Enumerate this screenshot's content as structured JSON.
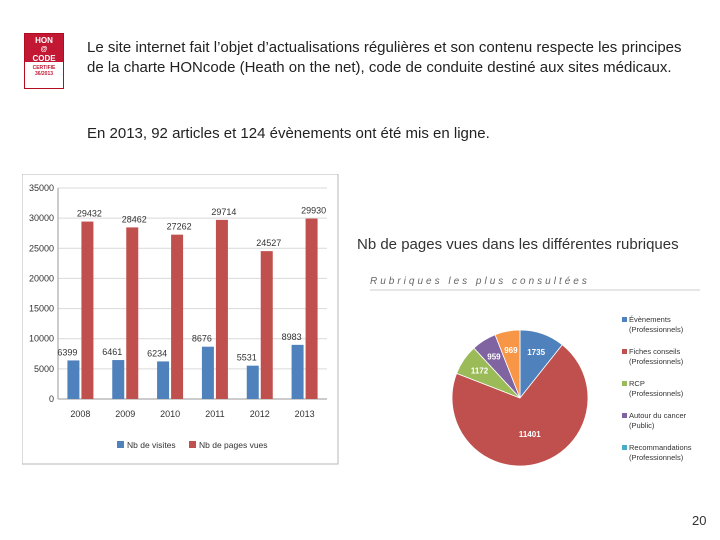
{
  "badge": {
    "line1": "HON",
    "line2": "CODE",
    "line3": "CERTIFIE",
    "line4": "36/2013"
  },
  "text": {
    "intro": "Le site internet fait l’objet d’actualisations régulières et son contenu respecte les principes de la charte HONcode (Heath on the net), code de conduite destiné aux sites médicaux.",
    "stat": "En 2013, 92 articles et 124 évènements ont été mis en ligne.",
    "pie_title": "Nb de pages vues dans les différentes rubriques",
    "page_number": "20"
  },
  "chart_data": [
    {
      "type": "bar",
      "categories": [
        "2008",
        "2009",
        "2010",
        "2011",
        "2012",
        "2013"
      ],
      "series": [
        {
          "name": "Nb de visites",
          "values": [
            6399,
            6461,
            6234,
            8676,
            5531,
            8983
          ],
          "color": "#4f81bd"
        },
        {
          "name": "Nb de pages vues",
          "values": [
            29432,
            28462,
            27262,
            29714,
            24527,
            29930
          ],
          "color": "#c0504d"
        }
      ],
      "yticks": [
        "0",
        "5000",
        "10000",
        "15000",
        "20000",
        "25000",
        "30000",
        "35000"
      ],
      "ylim": [
        0,
        35000
      ],
      "grid": true,
      "legend": "bottom"
    },
    {
      "type": "pie",
      "title": "Rubriques les plus consultées",
      "slices": [
        {
          "label": "Évènements (Professionnels)",
          "value": 1735,
          "color": "#4f81bd"
        },
        {
          "label": "Fiches conseils (Professionnels)",
          "value": 11401,
          "color": "#c0504d"
        },
        {
          "label": "RCP (Professionnels)",
          "value": 1172,
          "color": "#9bbb59"
        },
        {
          "label": "Autour du cancer (Public)",
          "value": 959,
          "color": "#8064a2"
        },
        {
          "label": "Recommandations (Professionnels)",
          "value": 0,
          "color": "#4bacc6"
        },
        {
          "label": "",
          "value": 969,
          "color": "#f79646"
        }
      ],
      "display_values": [
        "1735",
        "11401",
        "1172",
        "959",
        "969"
      ],
      "legend": "right"
    }
  ]
}
